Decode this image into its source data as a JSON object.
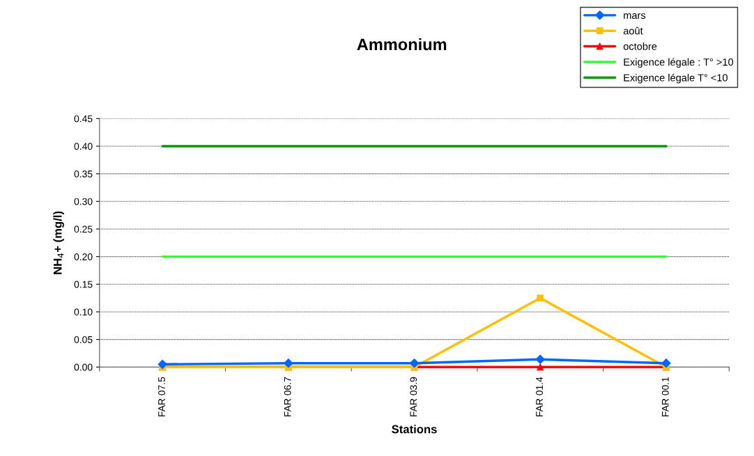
{
  "chart_data": {
    "type": "line",
    "title": "Ammonium",
    "xlabel": "Stations",
    "ylabel": "NH$_{4}$+ (mg/l)",
    "categories": [
      "FAR 07.5",
      "FAR 06.7",
      "FAR 03.9",
      "FAR 01.4",
      "FAR 00.1"
    ],
    "series": [
      {
        "name": "mars",
        "color": "#0066ff",
        "marker": "diamond",
        "values": [
          0.005,
          0.007,
          0.007,
          0.014,
          0.007
        ]
      },
      {
        "name": "août",
        "color": "#ffc000",
        "marker": "square",
        "values": [
          0,
          0,
          0,
          0.125,
          0
        ]
      },
      {
        "name": "octobre",
        "color": "#ff0000",
        "marker": "triangle",
        "values": [
          0,
          0,
          0,
          0,
          0
        ]
      },
      {
        "name": "Exigence légale : T° >10",
        "color": "#33ff33",
        "marker": "none",
        "values": [
          0.2,
          0.2,
          0.2,
          0.2,
          0.2
        ]
      },
      {
        "name": "Exigence légale T° <10",
        "color": "#009900",
        "marker": "none",
        "values": [
          0.4,
          0.4,
          0.4,
          0.4,
          0.4
        ]
      }
    ],
    "ylim": [
      0,
      0.45
    ],
    "yticks": [
      {
        "value": 0,
        "label": "0.00"
      },
      {
        "value": 0.05,
        "label": "0.05"
      },
      {
        "value": 0.1,
        "label": "0.10"
      },
      {
        "value": 0.15,
        "label": "0.15"
      },
      {
        "value": 0.2,
        "label": "0.20"
      },
      {
        "value": 0.25,
        "label": "0.25"
      },
      {
        "value": 0.3,
        "label": "0.30"
      },
      {
        "value": 0.35,
        "label": "0.35"
      },
      {
        "value": 0.4,
        "label": "0.40"
      },
      {
        "value": 0.45,
        "label": "0.45"
      }
    ],
    "grid": "y",
    "legend": "top right"
  }
}
